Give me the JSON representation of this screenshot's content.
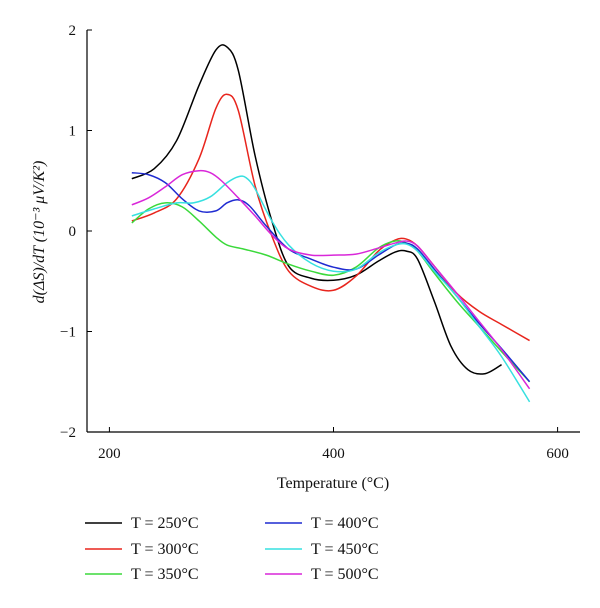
{
  "chart_data": {
    "type": "line",
    "title": "",
    "xlabel": "Temperature (°C)",
    "ylabel": "d(ΔS)/dT (10⁻³ μV/K²)",
    "xlim": [
      180,
      620
    ],
    "ylim": [
      -2,
      2
    ],
    "x_ticks": [
      "200",
      "400",
      "600"
    ],
    "x_tick_values": [
      200,
      400,
      600
    ],
    "y_ticks": [
      "2",
      "1",
      "0",
      "−1",
      "−2"
    ],
    "y_tick_values": [
      2,
      1,
      0,
      -1,
      -2
    ],
    "grid": false,
    "legend_position": "bottom",
    "series": [
      {
        "name": "T = 250°C",
        "color": "#000000",
        "x": [
          220,
          240,
          260,
          280,
          295,
          305,
          315,
          330,
          345,
          360,
          380,
          400,
          420,
          440,
          455,
          465,
          475,
          490,
          505,
          520,
          535,
          550
        ],
        "y": [
          0.52,
          0.62,
          0.9,
          1.45,
          1.8,
          1.83,
          1.6,
          0.75,
          0.1,
          -0.35,
          -0.47,
          -0.49,
          -0.44,
          -0.3,
          -0.21,
          -0.2,
          -0.28,
          -0.7,
          -1.15,
          -1.38,
          -1.42,
          -1.33
        ]
      },
      {
        "name": "T = 300°C",
        "color": "#e8251d",
        "x": [
          220,
          240,
          260,
          280,
          295,
          305,
          315,
          330,
          345,
          360,
          380,
          400,
          420,
          440,
          455,
          465,
          475,
          490,
          510,
          530,
          550,
          575
        ],
        "y": [
          0.1,
          0.18,
          0.32,
          0.72,
          1.22,
          1.36,
          1.2,
          0.45,
          -0.05,
          -0.4,
          -0.55,
          -0.59,
          -0.45,
          -0.2,
          -0.09,
          -0.08,
          -0.15,
          -0.35,
          -0.62,
          -0.8,
          -0.93,
          -1.09
        ]
      },
      {
        "name": "T = 350°C",
        "color": "#3bd93b",
        "x": [
          220,
          235,
          250,
          265,
          280,
          295,
          305,
          320,
          340,
          360,
          380,
          400,
          420,
          440,
          455,
          465,
          475,
          490,
          510,
          530,
          550,
          575
        ],
        "y": [
          0.08,
          0.22,
          0.28,
          0.24,
          0.1,
          -0.06,
          -0.14,
          -0.18,
          -0.24,
          -0.33,
          -0.4,
          -0.44,
          -0.36,
          -0.17,
          -0.1,
          -0.12,
          -0.2,
          -0.42,
          -0.7,
          -0.95,
          -1.2,
          -1.5
        ]
      },
      {
        "name": "T = 400°C",
        "color": "#1f2bd1",
        "x": [
          220,
          235,
          250,
          265,
          280,
          295,
          305,
          315,
          325,
          340,
          360,
          380,
          400,
          420,
          440,
          455,
          465,
          475,
          490,
          510,
          530,
          550,
          575
        ],
        "y": [
          0.58,
          0.56,
          0.48,
          0.32,
          0.2,
          0.2,
          0.28,
          0.31,
          0.25,
          0.05,
          -0.18,
          -0.28,
          -0.36,
          -0.38,
          -0.24,
          -0.14,
          -0.12,
          -0.18,
          -0.38,
          -0.65,
          -0.92,
          -1.17,
          -1.5
        ]
      },
      {
        "name": "T = 450°C",
        "color": "#37e0e0",
        "x": [
          220,
          240,
          260,
          275,
          290,
          305,
          315,
          322,
          330,
          345,
          360,
          380,
          400,
          420,
          440,
          455,
          465,
          475,
          490,
          510,
          530,
          550,
          575
        ],
        "y": [
          0.15,
          0.22,
          0.28,
          0.28,
          0.34,
          0.48,
          0.54,
          0.53,
          0.42,
          0.1,
          -0.14,
          -0.32,
          -0.4,
          -0.38,
          -0.22,
          -0.14,
          -0.13,
          -0.2,
          -0.4,
          -0.65,
          -0.95,
          -1.25,
          -1.7
        ]
      },
      {
        "name": "T = 500°C",
        "color": "#d927d9",
        "x": [
          220,
          235,
          250,
          265,
          280,
          290,
          300,
          315,
          330,
          345,
          360,
          380,
          400,
          420,
          440,
          455,
          465,
          475,
          490,
          510,
          530,
          550,
          575
        ],
        "y": [
          0.26,
          0.33,
          0.44,
          0.56,
          0.6,
          0.58,
          0.5,
          0.33,
          0.15,
          -0.04,
          -0.18,
          -0.24,
          -0.24,
          -0.23,
          -0.17,
          -0.12,
          -0.1,
          -0.15,
          -0.35,
          -0.62,
          -0.9,
          -1.18,
          -1.57
        ]
      }
    ]
  }
}
